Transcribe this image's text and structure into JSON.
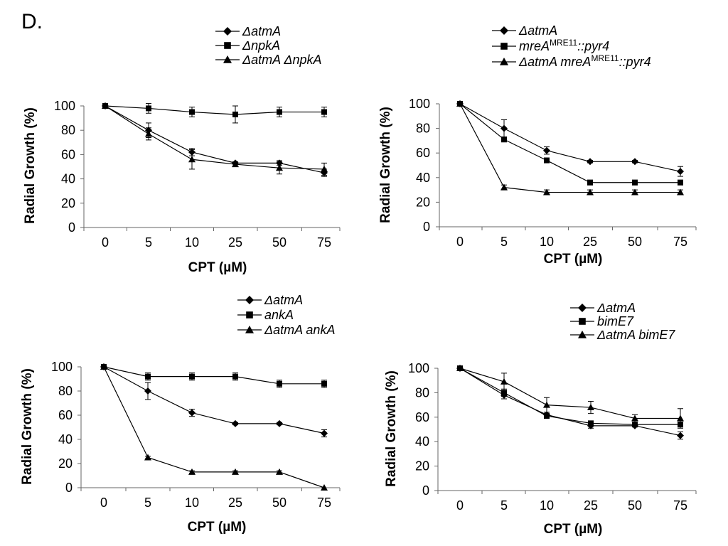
{
  "figure": {
    "panel_label": "D."
  },
  "chart_data": [
    {
      "type": "line",
      "categories": [
        "0",
        "5",
        "10",
        "25",
        "50",
        "75"
      ],
      "xlabel": "CPT (µM)",
      "ylabel": "Radial Growth (%)",
      "ylim": [
        0,
        100
      ],
      "yticks": [
        "0",
        "20",
        "40",
        "60",
        "80",
        "100"
      ],
      "series": [
        {
          "name": "ΔatmA",
          "marker": "diamond",
          "values": [
            100,
            80,
            62,
            53,
            53,
            45
          ],
          "errors": [
            0,
            6,
            3,
            1,
            2,
            3
          ]
        },
        {
          "name": "ΔnpkA",
          "marker": "square",
          "values": [
            100,
            98,
            95,
            93,
            95,
            95
          ],
          "errors": [
            0,
            4,
            4,
            7,
            4,
            4
          ]
        },
        {
          "name": "ΔatmA ΔnpkA",
          "marker": "triangle",
          "values": [
            100,
            77,
            56,
            52,
            49,
            48
          ],
          "errors": [
            0,
            5,
            8,
            2,
            5,
            5
          ]
        }
      ]
    },
    {
      "type": "line",
      "categories": [
        "0",
        "5",
        "10",
        "25",
        "50",
        "75"
      ],
      "xlabel": "CPT (µM)",
      "ylabel": "Radial Growth (%)",
      "ylim": [
        0,
        100
      ],
      "yticks": [
        "0",
        "20",
        "40",
        "60",
        "80",
        "100"
      ],
      "series": [
        {
          "name": "ΔatmA",
          "marker": "diamond",
          "values": [
            100,
            80,
            62,
            53,
            53,
            45
          ],
          "errors": [
            0,
            7,
            3,
            1,
            1,
            4
          ]
        },
        {
          "name": "mreAMRE11::pyr4",
          "marker": "square",
          "values": [
            100,
            71,
            54,
            36,
            36,
            36
          ],
          "errors": [
            0,
            2,
            2,
            2,
            2,
            2
          ]
        },
        {
          "name": "ΔatmA mreAMRE11::pyr4",
          "marker": "triangle",
          "values": [
            100,
            32,
            28,
            28,
            28,
            28
          ],
          "errors": [
            0,
            2,
            2,
            2,
            2,
            2
          ]
        }
      ]
    },
    {
      "type": "line",
      "categories": [
        "0",
        "5",
        "10",
        "25",
        "50",
        "75"
      ],
      "xlabel": "CPT (µM)",
      "ylabel": "Radial Growth (%)",
      "ylim": [
        0,
        100
      ],
      "yticks": [
        "0",
        "20",
        "40",
        "60",
        "80",
        "100"
      ],
      "series": [
        {
          "name": "ΔatmA",
          "marker": "diamond",
          "values": [
            100,
            80,
            62,
            53,
            53,
            45
          ],
          "errors": [
            0,
            7,
            3,
            1,
            1,
            3
          ]
        },
        {
          "name": "ankA",
          "marker": "square",
          "values": [
            100,
            92,
            92,
            92,
            86,
            86
          ],
          "errors": [
            0,
            3,
            3,
            3,
            3,
            3
          ]
        },
        {
          "name": "ΔatmA ankA",
          "marker": "triangle",
          "values": [
            100,
            25,
            13,
            13,
            13,
            0
          ],
          "errors": [
            0,
            1,
            1,
            1,
            1,
            0
          ]
        }
      ]
    },
    {
      "type": "line",
      "categories": [
        "0",
        "5",
        "10",
        "25",
        "50",
        "75"
      ],
      "xlabel": "CPT (µM)",
      "ylabel": "Radial Growth (%)",
      "ylim": [
        0,
        100
      ],
      "yticks": [
        "0",
        "20",
        "40",
        "60",
        "80",
        "100"
      ],
      "series": [
        {
          "name": "ΔatmA",
          "marker": "diamond",
          "values": [
            100,
            78,
            62,
            53,
            53,
            45
          ],
          "errors": [
            0,
            3,
            2,
            2,
            1,
            3
          ]
        },
        {
          "name": "bimE7",
          "marker": "square",
          "values": [
            100,
            80,
            61,
            55,
            54,
            54
          ],
          "errors": [
            0,
            3,
            2,
            2,
            2,
            2
          ]
        },
        {
          "name": "ΔatmA bimE7",
          "marker": "triangle",
          "values": [
            100,
            89,
            70,
            68,
            59,
            59
          ],
          "errors": [
            0,
            7,
            6,
            5,
            3,
            8
          ]
        }
      ]
    }
  ]
}
